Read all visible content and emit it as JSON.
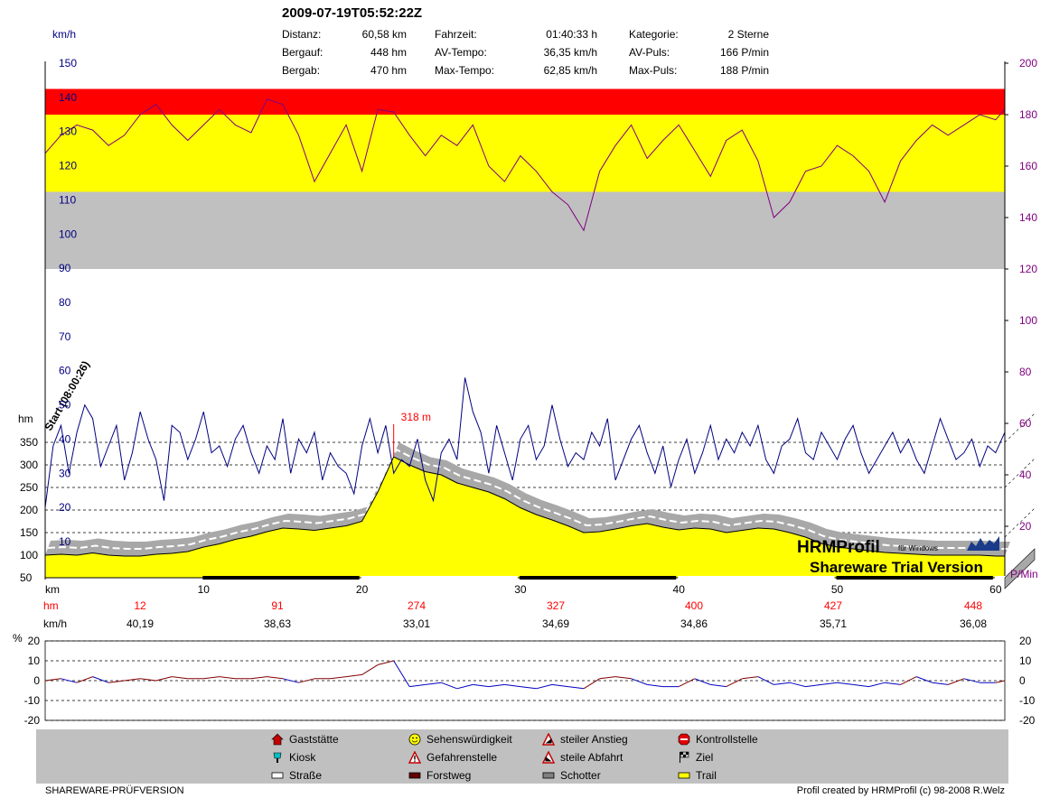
{
  "header": {
    "title": "2009-07-19T05:52:22Z",
    "stats": [
      {
        "label": "Distanz:",
        "value": "60,58 km"
      },
      {
        "label": "Bergauf:",
        "value": "448 hm"
      },
      {
        "label": "Bergab:",
        "value": "470 hm"
      },
      {
        "label": "Fahrzeit:",
        "value": "01:40:33 h"
      },
      {
        "label": "AV-Tempo:",
        "value": "36,35 km/h"
      },
      {
        "label": "Max-Tempo:",
        "value": "62,85 km/h"
      },
      {
        "label": "Kategorie:",
        "value": "2 Sterne"
      },
      {
        "label": "AV-Puls:",
        "value": "166 P/min"
      },
      {
        "label": "Max-Puls:",
        "value": "188 P/min"
      }
    ]
  },
  "colors": {
    "speed": "#000080",
    "pulse": "#800080",
    "zone_red": "#ff0000",
    "zone_yellow": "#ffff00",
    "zone_gray": "#c0c0c0",
    "alt_fill": "#ffff00",
    "alt_label": "#ff0000"
  },
  "chart_data": [
    {
      "type": "line",
      "left_axis_unit": "km/h",
      "left_ticks": [
        "150",
        "140",
        "130",
        "120",
        "110",
        "100",
        "90",
        "80",
        "70",
        "60",
        "50",
        "40",
        "30",
        "20",
        "10"
      ],
      "right_axis_unit": "P/Min",
      "right_ticks": [
        "200",
        "180",
        "160",
        "140",
        "120",
        "100",
        "80",
        "60",
        "40",
        "20"
      ],
      "heart_rate_zones": [
        {
          "from": 180,
          "to": 190,
          "color": "red"
        },
        {
          "from": 150,
          "to": 180,
          "color": "yellow"
        },
        {
          "from": 120,
          "to": 150,
          "color": "gray"
        }
      ],
      "pulse_ylim": [
        0,
        200
      ],
      "speed_ylim": [
        0,
        150
      ],
      "x_unit": "km",
      "xlim": [
        0,
        60.58
      ],
      "x_ticks": [
        "10",
        "20",
        "30",
        "40",
        "50",
        "60"
      ],
      "series": [
        {
          "kind": "pulse",
          "x": [
            0,
            1,
            2,
            3,
            4,
            5,
            6,
            7,
            8,
            9,
            10,
            11,
            12,
            13,
            14,
            15,
            16,
            17,
            18,
            19,
            20,
            21,
            22,
            23,
            24,
            25,
            26,
            27,
            28,
            29,
            30,
            31,
            32,
            33,
            34,
            35,
            36,
            37,
            38,
            39,
            40,
            41,
            42,
            43,
            44,
            45,
            46,
            47,
            48,
            49,
            50,
            51,
            52,
            53,
            54,
            55,
            56,
            57,
            58,
            59,
            60,
            60.58
          ],
          "y": [
            165,
            172,
            176,
            174,
            168,
            172,
            180,
            184,
            176,
            170,
            176,
            182,
            176,
            173,
            186,
            184,
            172,
            154,
            165,
            176,
            158,
            182,
            181,
            172,
            164,
            172,
            168,
            176,
            160,
            154,
            164,
            158,
            150,
            145,
            135,
            158,
            168,
            176,
            163,
            170,
            176,
            166,
            156,
            170,
            174,
            162,
            140,
            146,
            158,
            160,
            168,
            164,
            158,
            146,
            162,
            170,
            176,
            172,
            176,
            180,
            178,
            182
          ]
        },
        {
          "kind": "speed",
          "x": [
            0,
            0.5,
            1,
            1.5,
            2,
            2.5,
            3,
            3.5,
            4,
            4.5,
            5,
            5.5,
            6,
            6.5,
            7,
            7.5,
            8,
            8.5,
            9,
            9.5,
            10,
            10.5,
            11,
            11.5,
            12,
            12.5,
            13,
            13.5,
            14,
            14.5,
            15,
            15.5,
            16,
            16.5,
            17,
            17.5,
            18,
            18.5,
            19,
            19.5,
            20,
            20.5,
            21,
            21.5,
            22,
            22.5,
            23,
            23.5,
            24,
            24.5,
            25,
            25.5,
            26,
            26.5,
            27,
            27.5,
            28,
            28.5,
            29,
            29.5,
            30,
            30.5,
            31,
            31.5,
            32,
            32.5,
            33,
            33.5,
            34,
            34.5,
            35,
            35.5,
            36,
            36.5,
            37,
            37.5,
            38,
            38.5,
            39,
            39.5,
            40,
            40.5,
            41,
            41.5,
            42,
            42.5,
            43,
            43.5,
            44,
            44.5,
            45,
            45.5,
            46,
            46.5,
            47,
            47.5,
            48,
            48.5,
            49,
            49.5,
            50,
            50.5,
            51,
            51.5,
            52,
            52.5,
            53,
            53.5,
            54,
            54.5,
            55,
            55.5,
            56,
            56.5,
            57,
            57.5,
            58,
            58.5,
            59,
            59.5,
            60,
            60.58
          ],
          "y": [
            20,
            38,
            44,
            30,
            42,
            50,
            46,
            32,
            38,
            44,
            28,
            36,
            48,
            40,
            34,
            22,
            44,
            42,
            34,
            40,
            48,
            36,
            38,
            32,
            40,
            44,
            36,
            30,
            38,
            34,
            46,
            30,
            40,
            36,
            42,
            28,
            36,
            32,
            30,
            24,
            38,
            46,
            36,
            44,
            30,
            34,
            32,
            40,
            28,
            22,
            36,
            40,
            34,
            58,
            48,
            42,
            30,
            44,
            36,
            28,
            40,
            44,
            34,
            38,
            50,
            40,
            32,
            36,
            34,
            42,
            38,
            46,
            28,
            34,
            40,
            44,
            36,
            30,
            38,
            26,
            34,
            40,
            30,
            36,
            44,
            34,
            40,
            36,
            42,
            38,
            44,
            34,
            30,
            38,
            40,
            46,
            36,
            34,
            42,
            38,
            34,
            40,
            44,
            36,
            30,
            34,
            38,
            42,
            36,
            40,
            34,
            30,
            38,
            46,
            40,
            34,
            36,
            40,
            32,
            38,
            36,
            42
          ]
        }
      ]
    },
    {
      "type": "area",
      "y_axis_unit": "hm",
      "y_ticks": [
        "350",
        "300",
        "250",
        "200",
        "150",
        "100",
        "50"
      ],
      "ylim": [
        50,
        350
      ],
      "max_label": "318 m",
      "start_label": "Start (08:00:26)",
      "x": [
        0,
        1,
        2,
        3,
        4,
        5,
        6,
        7,
        8,
        9,
        10,
        11,
        12,
        13,
        14,
        15,
        16,
        17,
        18,
        19,
        20,
        21,
        22,
        23,
        24,
        25,
        26,
        27,
        28,
        29,
        30,
        31,
        32,
        33,
        34,
        35,
        36,
        37,
        38,
        39,
        40,
        41,
        42,
        43,
        44,
        45,
        46,
        47,
        48,
        49,
        50,
        51,
        52,
        53,
        54,
        55,
        56,
        57,
        58,
        59,
        60,
        60.58
      ],
      "altitude": [
        100,
        102,
        100,
        105,
        100,
        98,
        98,
        102,
        104,
        108,
        118,
        125,
        135,
        142,
        152,
        160,
        158,
        155,
        160,
        165,
        175,
        240,
        318,
        300,
        285,
        278,
        260,
        250,
        240,
        225,
        205,
        190,
        178,
        165,
        150,
        152,
        158,
        165,
        170,
        162,
        156,
        160,
        158,
        150,
        155,
        160,
        158,
        150,
        140,
        126,
        118,
        114,
        110,
        106,
        104,
        102,
        100,
        100,
        100,
        100,
        98,
        98
      ]
    },
    {
      "type": "line",
      "ylabel": "%",
      "y_ticks": [
        "20",
        "10",
        "0",
        "-10",
        "-20"
      ],
      "ylim": [
        -20,
        20
      ],
      "x": [
        0,
        1,
        2,
        3,
        4,
        5,
        6,
        7,
        8,
        9,
        10,
        11,
        12,
        13,
        14,
        15,
        16,
        17,
        18,
        19,
        20,
        21,
        22,
        23,
        24,
        25,
        26,
        27,
        28,
        29,
        30,
        31,
        32,
        33,
        34,
        35,
        36,
        37,
        38,
        39,
        40,
        41,
        42,
        43,
        44,
        45,
        46,
        47,
        48,
        49,
        50,
        51,
        52,
        53,
        54,
        55,
        56,
        57,
        58,
        59,
        60,
        60.58
      ],
      "gradient": [
        0,
        1,
        -1,
        2,
        -1,
        0,
        1,
        0,
        2,
        1,
        1,
        2,
        1,
        1,
        2,
        1,
        -1,
        1,
        1,
        2,
        3,
        8,
        10,
        -3,
        -2,
        -1,
        -4,
        -2,
        -3,
        -2,
        -3,
        -4,
        -2,
        -3,
        -4,
        1,
        2,
        1,
        -2,
        -3,
        -3,
        1,
        -2,
        -3,
        1,
        2,
        -2,
        -1,
        -3,
        -2,
        -1,
        -2,
        -3,
        -1,
        -2,
        2,
        -1,
        -2,
        1,
        -1,
        -1,
        0
      ]
    },
    {
      "type": "table",
      "rows": [
        {
          "unit": "hm",
          "values": [
            "12",
            "91",
            "274",
            "327",
            "400",
            "427",
            "448"
          ]
        },
        {
          "unit": "km/h",
          "values": [
            "40,19",
            "38,63",
            "33,01",
            "34,69",
            "34,86",
            "35,71",
            "36,08"
          ]
        }
      ]
    }
  ],
  "watermark": {
    "brand": "HRMProfil",
    "sub": "für Windows",
    "trial": "Shareware Trial  Version"
  },
  "legend": [
    {
      "label": "Gaststätte",
      "icon": "house-icon"
    },
    {
      "label": "Kiosk",
      "icon": "kiosk-icon"
    },
    {
      "label": "Straße",
      "icon": "road-swatch-icon"
    },
    {
      "label": "Sehenswürdigkeit",
      "icon": "smiley-icon"
    },
    {
      "label": "Gefahrenstelle",
      "icon": "warning-icon"
    },
    {
      "label": "Forstweg",
      "icon": "forestroad-swatch-icon"
    },
    {
      "label": "steiler Anstieg",
      "icon": "steep-up-icon"
    },
    {
      "label": "steile Abfahrt",
      "icon": "steep-down-icon"
    },
    {
      "label": "Schotter",
      "icon": "gravel-swatch-icon"
    },
    {
      "label": "Kontrollstelle",
      "icon": "stop-icon"
    },
    {
      "label": "Ziel",
      "icon": "finish-flag-icon"
    },
    {
      "label": "Trail",
      "icon": "trail-swatch-icon"
    }
  ],
  "footer": {
    "left": "SHAREWARE-PRÜFVERSION",
    "right": "Profil created by HRMProfil (c) 98-2008 R.Welz"
  }
}
